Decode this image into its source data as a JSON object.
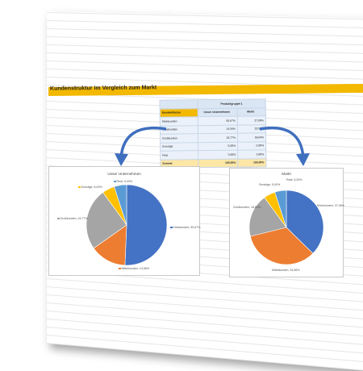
{
  "banner": {
    "title": "Kundenstruktur im Vergleich zum Markt"
  },
  "table": {
    "group_header": "Produktgruppe 1",
    "columns": [
      "Kundenklasse",
      "Unser Unternehmen",
      "Markt"
    ],
    "rows": [
      {
        "name": "Kleinkunden",
        "ours": "50,67%",
        "market": "37,06%"
      },
      {
        "name": "Mittelkunden",
        "ours": "14,56%",
        "market": "33,56%"
      },
      {
        "name": "Großkunden",
        "ours": "24,77%",
        "market": "18,64%"
      },
      {
        "name": "Sonstige",
        "ours": "5,00%",
        "market": "5,00%"
      },
      {
        "name": "Rest",
        "ours": "5,00%",
        "market": "5,00%"
      }
    ],
    "sum": {
      "name": "Summe",
      "ours": "100,00%",
      "market": "100,00%"
    }
  },
  "chart_data": [
    {
      "type": "pie",
      "title": "Unser Unternehmen",
      "slices": [
        {
          "label": "Kleinkunden",
          "value": 50.67,
          "display": "Kleinkunden; 50,67%",
          "color": "#4472c4"
        },
        {
          "label": "Mittelkunden",
          "value": 14.56,
          "display": "Mittelkunden; 14,56%",
          "color": "#ed7d31"
        },
        {
          "label": "Großkunden",
          "value": 24.77,
          "display": "Großkunden; 24,77%",
          "color": "#a5a5a5"
        },
        {
          "label": "Sonstige",
          "value": 5.0,
          "display": "Sonstige; 5,00%",
          "color": "#ffc000"
        },
        {
          "label": "Rest",
          "value": 5.0,
          "display": "Rest; 5,00%",
          "color": "#5b9bd5"
        }
      ]
    },
    {
      "type": "pie",
      "title": "Markt",
      "slices": [
        {
          "label": "Kleinkunden",
          "value": 37.06,
          "display": "Kleinkunden; 37,06%",
          "color": "#4472c4"
        },
        {
          "label": "Mittelkunden",
          "value": 33.56,
          "display": "Mittelkunden; 33,56%",
          "color": "#ed7d31"
        },
        {
          "label": "Großkunden",
          "value": 18.64,
          "display": "Großkunden; 18,64%",
          "color": "#a5a5a5"
        },
        {
          "label": "Sonstige",
          "value": 5.0,
          "display": "Sonstige; 5,00%",
          "color": "#ffc000"
        },
        {
          "label": "Rest",
          "value": 5.0,
          "display": "Rest; 5,00%",
          "color": "#5b9bd5"
        }
      ]
    }
  ],
  "colors": {
    "banner": "#f3b800",
    "arrow": "#3f6fbf"
  }
}
